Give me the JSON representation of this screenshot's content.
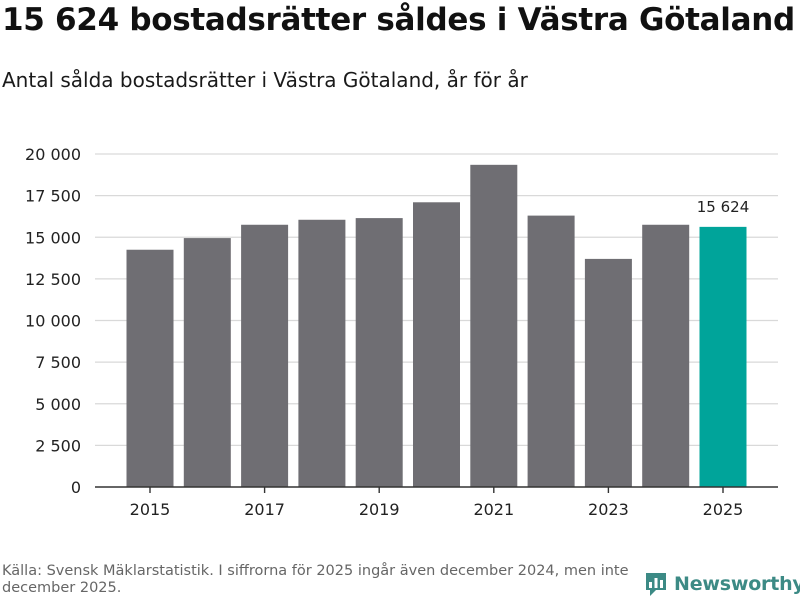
{
  "header": {
    "title": "15 624 bostadsrätter såldes i Västra Götaland",
    "subtitle": "Antal sålda bostadsrätter i Västra Götaland, år för år"
  },
  "footer": {
    "source": "Källa: Svensk Mäklarstatistik. I siffrorna för 2025 ingår även december 2024, men inte december 2025.",
    "brand": "Newsworthy"
  },
  "colors": {
    "bar": "#6f6e73",
    "highlight": "#00a49a",
    "grid": "#d9d9d9",
    "axis": "#333333",
    "brand": "#3c8a85"
  },
  "chart_data": {
    "type": "bar",
    "title": "Antal sålda bostadsrätter i Västra Götaland, år för år",
    "xlabel": "",
    "ylabel": "",
    "categories": [
      "2015",
      "2016",
      "2017",
      "2018",
      "2019",
      "2020",
      "2021",
      "2022",
      "2023",
      "2024",
      "2025"
    ],
    "values": [
      14250,
      14950,
      15750,
      16050,
      16150,
      17100,
      19350,
      16300,
      13700,
      15750,
      15624
    ],
    "highlight_index": 10,
    "data_labels": [
      {
        "index": 10,
        "text": "15 624"
      }
    ],
    "ylim": [
      0,
      20000
    ],
    "y_ticks": [
      {
        "value": 0,
        "label": "0"
      },
      {
        "value": 2500,
        "label": "2 500"
      },
      {
        "value": 5000,
        "label": "5 000"
      },
      {
        "value": 7500,
        "label": "7 500"
      },
      {
        "value": 10000,
        "label": "10 000"
      },
      {
        "value": 12500,
        "label": "12 500"
      },
      {
        "value": 15000,
        "label": "15 000"
      },
      {
        "value": 17500,
        "label": "17 500"
      },
      {
        "value": 20000,
        "label": "20 000"
      }
    ],
    "x_ticks": [
      "2015",
      "2017",
      "2019",
      "2021",
      "2023",
      "2025"
    ],
    "grid": true
  }
}
